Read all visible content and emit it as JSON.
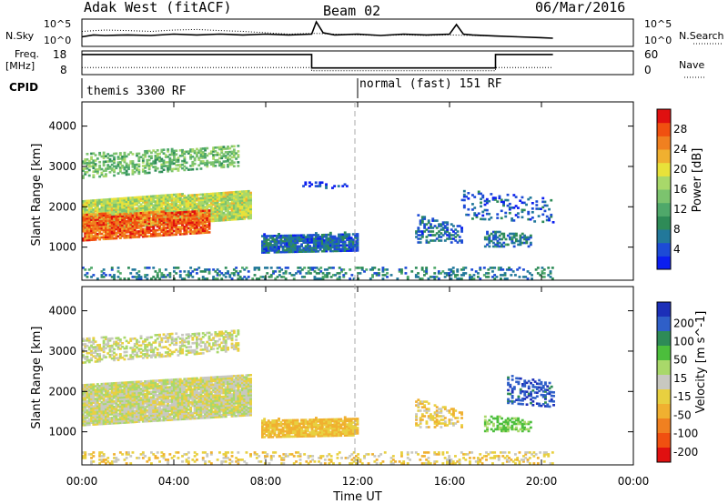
{
  "header": {
    "title": "Adak West (fitACF)",
    "beam": "Beam 02",
    "date": "06/Mar/2016"
  },
  "noise_panel": {
    "left_label": "N.Sky",
    "right_label": "N.Search",
    "left_ticks": [
      "10^5",
      "10^0"
    ],
    "right_ticks": [
      "10^5",
      "10^0"
    ]
  },
  "freq_panel": {
    "left_label_1": "Freq.",
    "left_label_2": "[MHz]",
    "right_label": "Nave",
    "left_ticks": [
      "18",
      "8"
    ],
    "right_ticks": [
      "60",
      "0"
    ]
  },
  "cpid": {
    "label": "CPID",
    "mode1": "themis 3300 RF",
    "mode2": "normal (fast) 151 RF",
    "mode2_start_hour": 12
  },
  "x_axis": {
    "label": "Time UT",
    "ticks": [
      "00:00",
      "04:00",
      "08:00",
      "12:00",
      "16:00",
      "20:00",
      "00:00"
    ],
    "tick_hours": [
      0,
      4,
      8,
      12,
      16,
      20,
      24
    ],
    "range_hours": [
      0,
      24
    ]
  },
  "chart_data": [
    {
      "type": "line",
      "panel": "noise",
      "series": [
        {
          "name": "N.Sky",
          "style": "solid",
          "x": [
            0,
            0.5,
            1,
            2,
            3,
            4,
            5,
            6,
            7,
            8,
            9,
            10,
            10.2,
            10.5,
            11,
            12,
            13,
            14,
            15,
            16,
            16.3,
            16.6,
            17,
            18,
            19,
            20,
            20.5
          ],
          "y_frac": [
            0.35,
            0.42,
            0.4,
            0.42,
            0.4,
            0.45,
            0.42,
            0.45,
            0.42,
            0.45,
            0.42,
            0.45,
            0.9,
            0.5,
            0.42,
            0.45,
            0.4,
            0.45,
            0.42,
            0.45,
            0.8,
            0.45,
            0.42,
            0.38,
            0.35,
            0.32,
            0.3
          ]
        },
        {
          "name": "N.Search",
          "style": "dotted",
          "x": [
            0,
            1,
            2,
            3,
            4,
            5,
            6,
            7,
            8,
            9,
            10,
            11,
            12,
            13,
            14,
            15,
            16,
            17,
            18,
            19,
            20,
            20.5
          ],
          "y_frac": [
            0.55,
            0.6,
            0.58,
            0.55,
            0.6,
            0.62,
            0.58,
            0.55,
            0.5,
            0.45,
            0.48,
            0.45,
            0.42,
            0.4,
            0.42,
            0.4,
            0.42,
            0.4,
            0.38,
            0.35,
            0.32,
            0.3
          ]
        }
      ]
    },
    {
      "type": "line",
      "panel": "frequency",
      "series": [
        {
          "name": "Freq.",
          "unit": "MHz",
          "style": "solid",
          "x": [
            0,
            10,
            10,
            18,
            18,
            20.5
          ],
          "y": [
            16.5,
            16.5,
            10.8,
            10.8,
            16.5,
            16.5
          ]
        },
        {
          "name": "Nave",
          "style": "dotted",
          "x": [
            0,
            10,
            10,
            18,
            18,
            20.5
          ],
          "y_right": [
            18,
            18,
            10,
            10,
            18,
            18
          ]
        }
      ]
    },
    {
      "type": "heatmap",
      "panel": "power",
      "ylabel": "Slant Range [km]",
      "ylim": [
        180,
        4600
      ],
      "yticks": [
        1000,
        2000,
        3000,
        4000
      ],
      "colorbar": {
        "label": "Power [dB]",
        "ticks": [
          4,
          8,
          12,
          16,
          20,
          24,
          28
        ],
        "range": [
          0,
          32
        ],
        "colors": [
          "#0b1ef0",
          "#1d4bd6",
          "#22789a",
          "#2e8b57",
          "#4fa86a",
          "#7cc36e",
          "#a8d86a",
          "#e8e23a",
          "#f0b030",
          "#f08020",
          "#f05010",
          "#e01010"
        ]
      },
      "regions": [
        {
          "t": [
            0,
            6.8
          ],
          "r_top": [
            3300,
            3500
          ],
          "r_bot": [
            2700,
            3000
          ],
          "level": 14,
          "density": 0.5
        },
        {
          "t": [
            0,
            7.3
          ],
          "r_top": [
            2150,
            2400
          ],
          "r_bot": [
            1400,
            1700
          ],
          "level": 18,
          "density": 0.95
        },
        {
          "t": [
            0,
            5.5
          ],
          "r_top": [
            1800,
            1900
          ],
          "r_bot": [
            1150,
            1350
          ],
          "level": 27,
          "density": 0.85
        },
        {
          "t": [
            7.8,
            12.0
          ],
          "r_top": [
            1300,
            1350
          ],
          "r_bot": [
            850,
            900
          ],
          "level": 6,
          "density": 0.9
        },
        {
          "t": [
            14.5,
            16.5
          ],
          "r_top": [
            1800,
            1500
          ],
          "r_bot": [
            1100,
            1100
          ],
          "level": 6,
          "density": 0.4
        },
        {
          "t": [
            17.5,
            19.5
          ],
          "r_top": [
            1400,
            1300
          ],
          "r_bot": [
            1000,
            1000
          ],
          "level": 7,
          "density": 0.5
        },
        {
          "t": [
            9.5,
            11.5
          ],
          "r_top": [
            2600,
            2600
          ],
          "r_bot": [
            2450,
            2450
          ],
          "level": 4,
          "density": 0.3
        },
        {
          "t": [
            16.5,
            20.5
          ],
          "r_top": [
            2400,
            2200
          ],
          "r_bot": [
            1700,
            1600
          ],
          "level": 5,
          "density": 0.2
        },
        {
          "t": [
            0,
            20.5
          ],
          "r_top": [
            500,
            500
          ],
          "r_bot": [
            200,
            200
          ],
          "level": 8,
          "density": 0.25
        }
      ]
    },
    {
      "type": "heatmap",
      "panel": "velocity",
      "ylabel": "Slant Range [km]",
      "ylim": [
        180,
        4600
      ],
      "yticks": [
        1000,
        2000,
        3000,
        4000
      ],
      "colorbar": {
        "label": "Velocity [m s^-1]",
        "ticks": [
          200,
          100,
          50,
          15,
          -15,
          -50,
          -100,
          -200
        ],
        "colors": [
          "#1c2fb8",
          "#2f5fc8",
          "#2e8b57",
          "#4cbe3c",
          "#a9d86a",
          "#c8c8c0",
          "#e8d040",
          "#f0b030",
          "#f08020",
          "#f05010",
          "#e01010"
        ]
      },
      "regions": [
        {
          "t": [
            0,
            6.8
          ],
          "r_top": [
            3300,
            3500
          ],
          "r_bot": [
            2700,
            3000
          ],
          "vel": 0,
          "density": 0.5
        },
        {
          "t": [
            0,
            7.3
          ],
          "r_top": [
            2150,
            2400
          ],
          "r_bot": [
            1150,
            1400
          ],
          "vel": 0,
          "density": 0.95
        },
        {
          "t": [
            7.8,
            12.0
          ],
          "r_top": [
            1300,
            1350
          ],
          "r_bot": [
            850,
            900
          ],
          "vel": -60,
          "density": 0.9
        },
        {
          "t": [
            14.5,
            16.5
          ],
          "r_top": [
            1800,
            1500
          ],
          "r_bot": [
            1100,
            1100
          ],
          "vel": -40,
          "density": 0.4
        },
        {
          "t": [
            17.5,
            19.5
          ],
          "r_top": [
            1400,
            1300
          ],
          "r_bot": [
            1000,
            1000
          ],
          "vel": 60,
          "density": 0.5
        },
        {
          "t": [
            18.5,
            20.5
          ],
          "r_top": [
            2400,
            2200
          ],
          "r_bot": [
            1700,
            1600
          ],
          "vel": 180,
          "density": 0.35
        },
        {
          "t": [
            0,
            20.5
          ],
          "r_top": [
            500,
            500
          ],
          "r_bot": [
            200,
            200
          ],
          "vel": -30,
          "density": 0.25
        }
      ]
    }
  ]
}
